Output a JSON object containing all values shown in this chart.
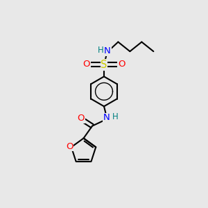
{
  "bg_color": "#e8e8e8",
  "atom_colors": {
    "C": "#000000",
    "N": "#0000ff",
    "O": "#ff0000",
    "S": "#cccc00",
    "H": "#008080"
  },
  "bond_color": "#000000",
  "bond_width": 1.5,
  "figsize": [
    3.0,
    3.0
  ],
  "dpi": 100,
  "xlim": [
    0,
    10
  ],
  "ylim": [
    0,
    13
  ]
}
